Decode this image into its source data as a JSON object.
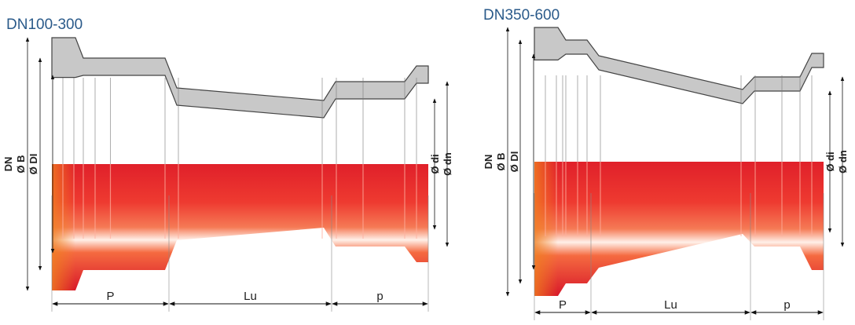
{
  "diagrams": [
    {
      "title": "DN100-300",
      "left_labels": [
        "DN",
        "Ø B",
        "Ø DI"
      ],
      "right_labels": [
        "Ø di",
        "Ø dn"
      ],
      "dimensions": [
        "P",
        "Lu",
        "p"
      ]
    },
    {
      "title": "DN350-600",
      "left_labels": [
        "DN",
        "Ø B",
        "Ø DI"
      ],
      "right_labels": [
        "Ø di",
        "Ø dn"
      ],
      "dimensions": [
        "P",
        "Lu",
        "p"
      ]
    }
  ]
}
